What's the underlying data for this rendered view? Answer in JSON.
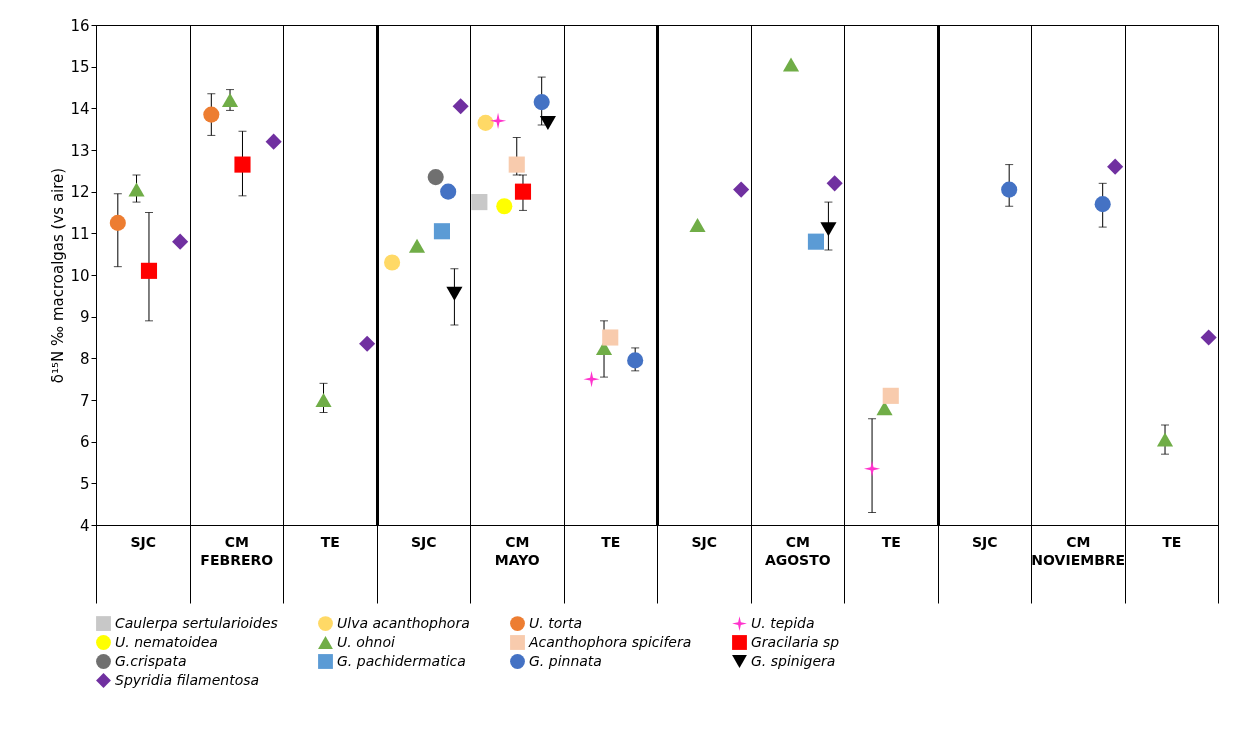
{
  "chart_data": {
    "type": "scatter",
    "ylabel": "δ¹⁵N ‰ macroalgas (vs aire)",
    "categories": [
      "SJC",
      "CM",
      "TE",
      "SJC",
      "CM",
      "TE",
      "SJC",
      "CM",
      "TE",
      "SJC",
      "CM",
      "TE"
    ],
    "annotations": [
      "FEBRERO",
      "MAYO",
      "AGOSTO",
      "NOVIEMBRE"
    ],
    "ylim": [
      4,
      16
    ],
    "yticks": [
      4,
      5,
      6,
      7,
      8,
      9,
      10,
      11,
      12,
      13,
      14,
      15,
      16
    ],
    "grid": "x",
    "legend": "bottom",
    "series": [
      {
        "name": "Caulerpa sertularioides",
        "color": "#c8c8c8",
        "marker": "square",
        "values": [
          null,
          null,
          null,
          null,
          11.75,
          null,
          null,
          null,
          null,
          null,
          null,
          null
        ]
      },
      {
        "name": "Ulva acanthophora",
        "color": "#ffd966",
        "marker": "circle",
        "values": [
          null,
          null,
          null,
          10.3,
          13.65,
          null,
          null,
          null,
          null,
          null,
          null,
          null
        ]
      },
      {
        "name": "U. torta",
        "color": "#ed7d31",
        "marker": "circle",
        "values": [
          11.25,
          13.85,
          null,
          null,
          null,
          null,
          null,
          null,
          null,
          null,
          null,
          null
        ],
        "errors": [
          [
            10.2,
            11.95
          ],
          [
            13.35,
            14.35
          ],
          null,
          null,
          null,
          null,
          null,
          null,
          null,
          null,
          null,
          null
        ]
      },
      {
        "name": "U. tepida",
        "color": "#ff33cc",
        "marker": "star",
        "values": [
          null,
          null,
          null,
          null,
          13.7,
          7.5,
          null,
          null,
          5.35,
          null,
          null,
          null
        ],
        "errors": [
          null,
          null,
          null,
          null,
          null,
          null,
          null,
          null,
          [
            4.3,
            6.55
          ],
          null,
          null,
          null
        ]
      },
      {
        "name": "U. nematoidea",
        "color": "#ffff00",
        "marker": "circle",
        "values": [
          null,
          null,
          null,
          null,
          11.65,
          null,
          null,
          null,
          null,
          null,
          null,
          null
        ]
      },
      {
        "name": "U. ohnoi",
        "color": "#70ad47",
        "marker": "triangle",
        "values": [
          12.05,
          14.2,
          7.0,
          10.7,
          null,
          8.25,
          11.2,
          15.05,
          6.8,
          null,
          null,
          6.05
        ],
        "errors": [
          [
            11.75,
            12.4
          ],
          [
            13.95,
            14.45
          ],
          [
            6.7,
            7.4
          ],
          null,
          null,
          [
            7.55,
            8.9
          ],
          null,
          null,
          null,
          null,
          null,
          [
            5.7,
            6.4
          ]
        ]
      },
      {
        "name": "Acanthophora spicifera",
        "color": "#f8cbad",
        "marker": "square",
        "values": [
          null,
          null,
          null,
          null,
          12.65,
          8.5,
          null,
          null,
          7.1,
          null,
          null,
          null
        ],
        "errors": [
          null,
          null,
          null,
          null,
          [
            12.4,
            13.3
          ],
          null,
          null,
          null,
          null,
          null,
          null,
          null
        ]
      },
      {
        "name": "Gracilaria sp",
        "color": "#ff0000",
        "marker": "square",
        "values": [
          10.1,
          12.65,
          null,
          null,
          12.0,
          null,
          null,
          null,
          null,
          null,
          null,
          null
        ],
        "errors": [
          [
            8.9,
            11.5
          ],
          [
            11.9,
            13.45
          ],
          null,
          null,
          [
            11.55,
            12.4
          ],
          null,
          null,
          null,
          null,
          null,
          null,
          null
        ]
      },
      {
        "name": "G.crispata",
        "color": "#707070",
        "marker": "circle",
        "values": [
          null,
          null,
          null,
          12.35,
          null,
          null,
          null,
          null,
          null,
          null,
          null,
          null
        ]
      },
      {
        "name": "G. pachidermatica",
        "color": "#5b9bd5",
        "marker": "square",
        "values": [
          null,
          null,
          null,
          11.05,
          null,
          null,
          null,
          10.8,
          null,
          null,
          null,
          null
        ]
      },
      {
        "name": "G. pinnata",
        "color": "#4472c4",
        "marker": "circle",
        "values": [
          null,
          null,
          null,
          12.0,
          14.15,
          7.95,
          null,
          null,
          null,
          12.05,
          11.7,
          null
        ],
        "errors": [
          null,
          null,
          null,
          null,
          [
            13.6,
            14.75
          ],
          [
            7.7,
            8.25
          ],
          null,
          null,
          null,
          [
            11.65,
            12.65
          ],
          [
            11.15,
            12.2
          ],
          null
        ]
      },
      {
        "name": "G. spinigera",
        "color": "#000000",
        "marker": "triangle-down",
        "values": [
          null,
          null,
          null,
          9.55,
          13.65,
          null,
          null,
          11.1,
          null,
          null,
          null,
          null
        ],
        "errors": [
          null,
          null,
          null,
          [
            8.8,
            10.15
          ],
          null,
          null,
          null,
          [
            10.6,
            11.75
          ],
          null,
          null,
          null,
          null
        ]
      },
      {
        "name": "Spyridia filamentosa",
        "color": "#7030a0",
        "marker": "diamond",
        "values": [
          10.8,
          13.2,
          8.35,
          14.05,
          null,
          null,
          12.05,
          12.2,
          null,
          null,
          12.6,
          8.5
        ]
      }
    ]
  }
}
